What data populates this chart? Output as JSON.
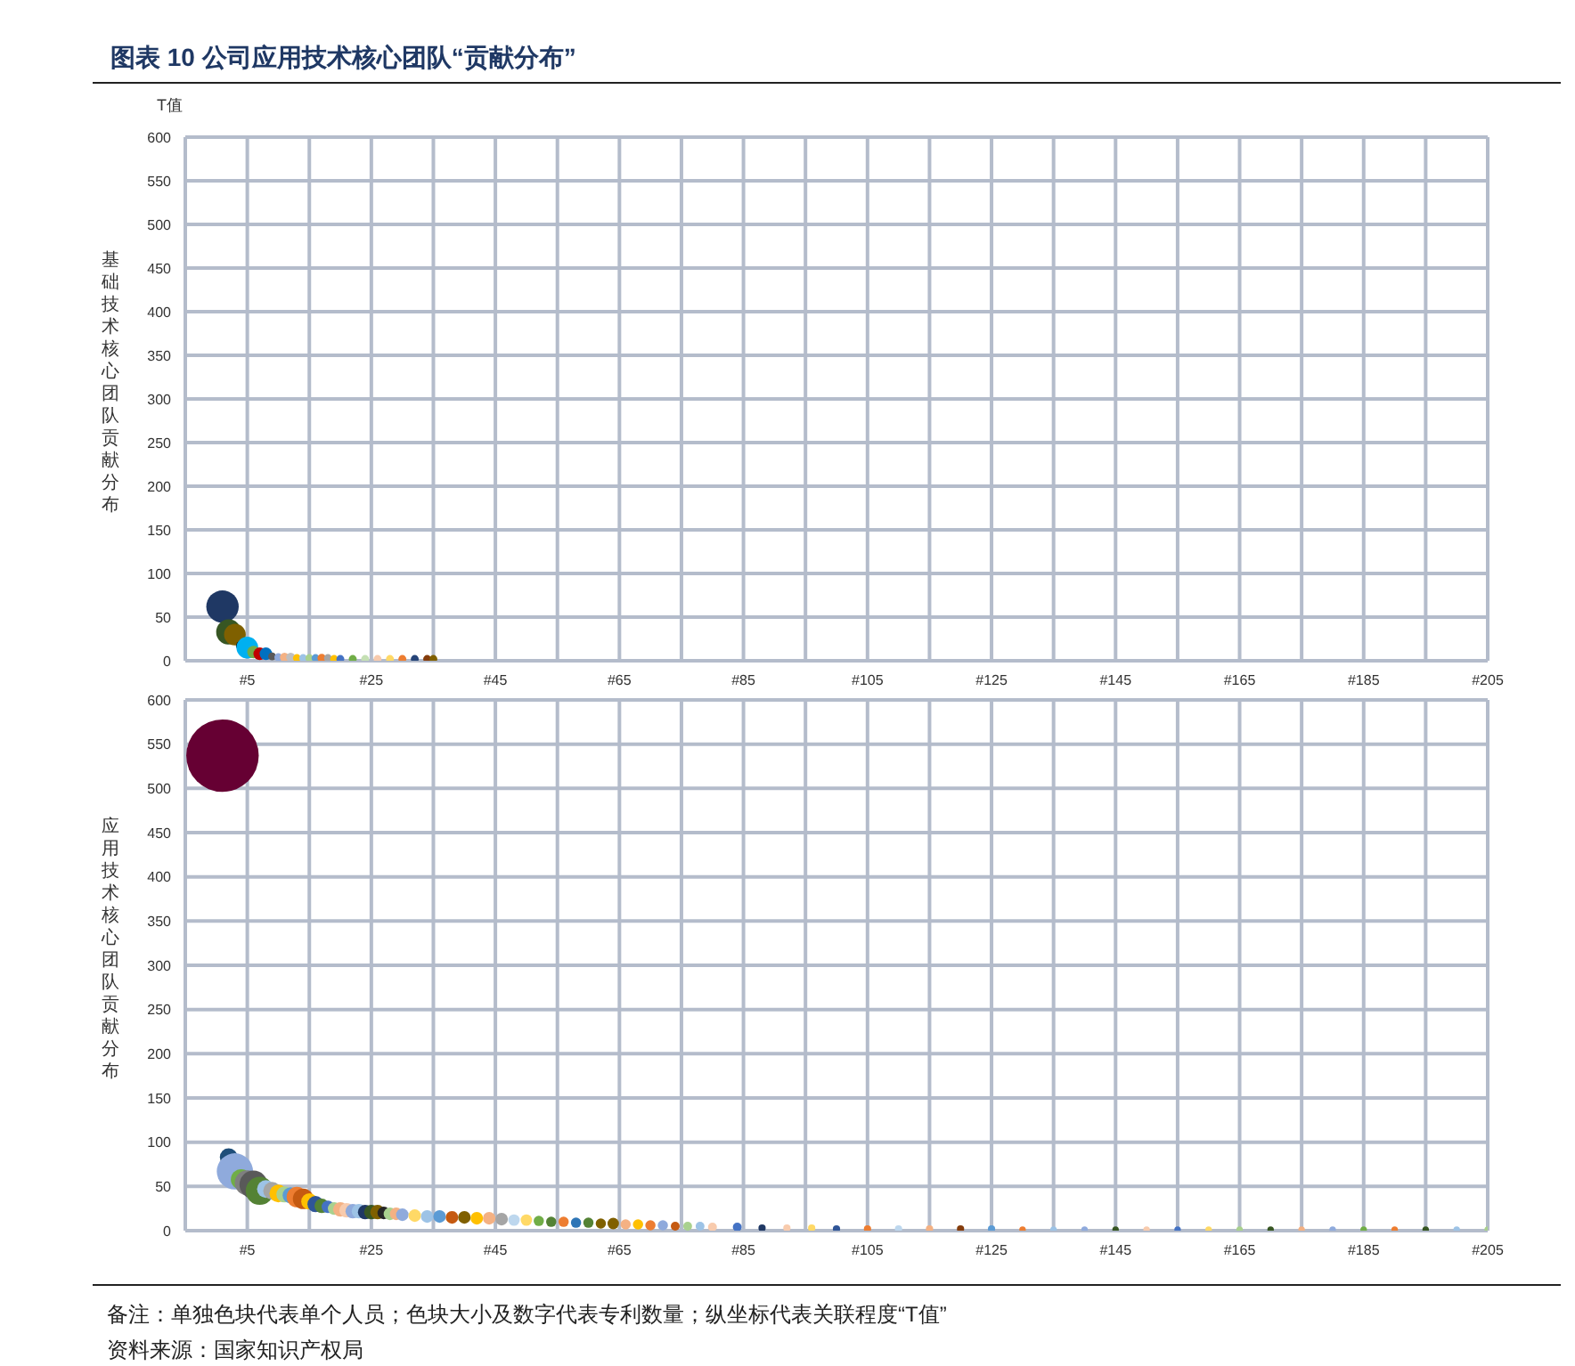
{
  "chart_data": [
    {
      "type": "bubble",
      "title": "图表 10 公司应用技术核心团队“贡献分布”",
      "ylabel": "基础技术核心团队贡献分布",
      "annotations": [
        "T值"
      ],
      "x": [
        1,
        2,
        3,
        4,
        5,
        6,
        7,
        8,
        9,
        10,
        11,
        12,
        13,
        14,
        15,
        16,
        17,
        18,
        19,
        20,
        22,
        24,
        26,
        28,
        30,
        32,
        34,
        35
      ],
      "values": [
        62,
        33,
        30,
        17,
        15,
        10,
        8,
        8,
        5,
        4,
        4,
        4,
        3,
        3,
        3,
        3,
        3,
        3,
        2,
        2,
        2,
        2,
        2,
        2,
        2,
        2,
        2,
        2
      ],
      "sizes": [
        1,
        0.6,
        0.45,
        0.1,
        0.45,
        0.15,
        0.15,
        0.15,
        0.06,
        0.06,
        0.08,
        0.08,
        0.06,
        0.06,
        0.06,
        0.06,
        0.07,
        0.06,
        0.06,
        0.06,
        0.06,
        0.06,
        0.06,
        0.06,
        0.06,
        0.06,
        0.06,
        0.06
      ],
      "colors": [
        "#1f3864",
        "#375623",
        "#7f6000",
        "#1a1a1a",
        "#00b0f0",
        "#70ad47",
        "#c00000",
        "#0070c0",
        "#595959",
        "#8faadc",
        "#f4b183",
        "#bfbfbf",
        "#ffc000",
        "#9dc3e6",
        "#a9d18e",
        "#5b9bd5",
        "#ed7d31",
        "#a5a5a5",
        "#ffc000",
        "#4472c4",
        "#70ad47",
        "#c5e0b4",
        "#f8cbad",
        "#ffd966",
        "#ed7d31",
        "#264478",
        "#843c0c",
        "#806000"
      ],
      "xlim": [
        -5,
        205
      ],
      "xticks": [
        {
          "value": -5,
          "label": null
        },
        {
          "value": 5,
          "label": "#5"
        },
        {
          "value": 15,
          "label": null
        },
        {
          "value": 25,
          "label": "#25"
        },
        {
          "value": 35,
          "label": null
        },
        {
          "value": 45,
          "label": "#45"
        },
        {
          "value": 55,
          "label": null
        },
        {
          "value": 65,
          "label": "#65"
        },
        {
          "value": 75,
          "label": null
        },
        {
          "value": 85,
          "label": "#85"
        },
        {
          "value": 95,
          "label": null
        },
        {
          "value": 105,
          "label": "#105"
        },
        {
          "value": 115,
          "label": null
        },
        {
          "value": 125,
          "label": "#125"
        },
        {
          "value": 135,
          "label": null
        },
        {
          "value": 145,
          "label": "#145"
        },
        {
          "value": 155,
          "label": null
        },
        {
          "value": 165,
          "label": "#165"
        },
        {
          "value": 175,
          "label": null
        },
        {
          "value": 185,
          "label": "#185"
        },
        {
          "value": 195,
          "label": null
        },
        {
          "value": 205,
          "label": "#205"
        }
      ],
      "ylim": [
        0,
        600
      ],
      "yticks": [
        0,
        50,
        100,
        150,
        200,
        250,
        300,
        350,
        400,
        450,
        500,
        550,
        600
      ],
      "grid": true
    },
    {
      "type": "bubble",
      "ylabel": "应用技术核心团队贡献分布",
      "annotations": [
        "备注：单独色块代表单个人员；色块大小及数字代表专利数量；纵坐标代表关联程度“T值”",
        "资料来源：国家知识产权局"
      ],
      "x": [
        1,
        2,
        3,
        4,
        5,
        6,
        7,
        8,
        9,
        10,
        11,
        12,
        13,
        14,
        15,
        16,
        17,
        18,
        19,
        20,
        21,
        22,
        23,
        24,
        25,
        26,
        27,
        28,
        29,
        30,
        32,
        34,
        36,
        38,
        40,
        42,
        44,
        46,
        48,
        50,
        52,
        54,
        56,
        58,
        60,
        62,
        64,
        66,
        68,
        70,
        72,
        74,
        76,
        78,
        80,
        84,
        88,
        92,
        96,
        100,
        105,
        110,
        115,
        120,
        125,
        130,
        135,
        140,
        145,
        150,
        155,
        160,
        165,
        170,
        175,
        180,
        185,
        190,
        195,
        200,
        205
      ],
      "values": [
        537,
        83,
        67,
        58,
        54,
        52,
        45,
        47,
        45,
        42,
        41,
        40,
        38,
        36,
        33,
        30,
        28,
        27,
        25,
        24,
        23,
        22,
        22,
        21,
        21,
        21,
        20,
        19,
        19,
        18,
        17,
        16,
        16,
        15,
        15,
        14,
        14,
        13,
        12,
        12,
        11,
        10,
        10,
        9,
        9,
        8,
        8,
        7,
        7,
        6,
        6,
        5,
        5,
        5,
        4,
        4,
        3,
        3,
        3,
        2,
        2,
        2,
        2,
        2,
        2,
        1,
        1,
        1,
        1,
        1,
        1,
        1,
        1,
        1,
        1,
        1,
        1,
        1,
        1,
        1,
        1
      ],
      "sizes": [
        1,
        0.06,
        0.25,
        0.08,
        0.12,
        0.15,
        0.15,
        0.06,
        0.06,
        0.06,
        0.05,
        0.05,
        0.08,
        0.08,
        0.05,
        0.05,
        0.04,
        0.03,
        0.03,
        0.04,
        0.04,
        0.04,
        0.04,
        0.04,
        0.04,
        0.04,
        0.03,
        0.03,
        0.03,
        0.03,
        0.03,
        0.03,
        0.03,
        0.03,
        0.03,
        0.03,
        0.03,
        0.03,
        0.025,
        0.025,
        0.02,
        0.02,
        0.02,
        0.02,
        0.02,
        0.02,
        0.025,
        0.02,
        0.02,
        0.02,
        0.02,
        0.015,
        0.015,
        0.015,
        0.015,
        0.015,
        0.01,
        0.01,
        0.01,
        0.01,
        0.01,
        0.01,
        0.01,
        0.01,
        0.01,
        0.008,
        0.008,
        0.008,
        0.008,
        0.008,
        0.008,
        0.008,
        0.008,
        0.008,
        0.008,
        0.008,
        0.008,
        0.008,
        0.008,
        0.008,
        0.008
      ],
      "colors": [
        "#660033",
        "#1f4e79",
        "#8faadc",
        "#70ad47",
        "#7f7f7f",
        "#595959",
        "#548235",
        "#9dc3e6",
        "#a5a5a5",
        "#ffc000",
        "#a9d18e",
        "#5b9bd5",
        "#ed7d31",
        "#c55a11",
        "#ffc000",
        "#2f5597",
        "#548235",
        "#4472c4",
        "#a9d18e",
        "#f4b183",
        "#f8cbad",
        "#8faadc",
        "#9dc3e6",
        "#1f3864",
        "#385723",
        "#7f6000",
        "#262626",
        "#a9d18e",
        "#f4b183",
        "#8faadc",
        "#ffd966",
        "#9dc3e6",
        "#5b9bd5",
        "#c55a11",
        "#806000",
        "#ffc000",
        "#f4b183",
        "#a5a5a5",
        "#bdd7ee",
        "#ffd966",
        "#70ad47",
        "#548235",
        "#ed7d31",
        "#2e75b6",
        "#548235",
        "#7f6000",
        "#806000",
        "#f4b183",
        "#ffc000",
        "#ed7d31",
        "#8faadc",
        "#c55a11",
        "#a9d18e",
        "#9dc3e6",
        "#f8cbad",
        "#4472c4",
        "#1f3864",
        "#f8cbad",
        "#ffd966",
        "#2f5597",
        "#ed7d31",
        "#bdd7ee",
        "#f4b183",
        "#843c0c",
        "#5b9bd5",
        "#ed7d31",
        "#9dc3e6",
        "#8faadc",
        "#375623",
        "#f8cbad",
        "#4472c4",
        "#ffd966",
        "#a9d18e",
        "#375623",
        "#f4b183",
        "#8faadc",
        "#70ad47",
        "#ed7d31",
        "#375623",
        "#9dc3e6",
        "#a9d18e"
      ],
      "xlim": [
        -5,
        205
      ],
      "xticks": [
        {
          "value": -5,
          "label": null
        },
        {
          "value": 5,
          "label": "#5"
        },
        {
          "value": 15,
          "label": null
        },
        {
          "value": 25,
          "label": "#25"
        },
        {
          "value": 35,
          "label": null
        },
        {
          "value": 45,
          "label": "#45"
        },
        {
          "value": 55,
          "label": null
        },
        {
          "value": 65,
          "label": "#65"
        },
        {
          "value": 75,
          "label": null
        },
        {
          "value": 85,
          "label": "#85"
        },
        {
          "value": 95,
          "label": null
        },
        {
          "value": 105,
          "label": "#105"
        },
        {
          "value": 115,
          "label": null
        },
        {
          "value": 125,
          "label": "#125"
        },
        {
          "value": 135,
          "label": null
        },
        {
          "value": 145,
          "label": "#145"
        },
        {
          "value": 155,
          "label": null
        },
        {
          "value": 165,
          "label": "#165"
        },
        {
          "value": 175,
          "label": null
        },
        {
          "value": 185,
          "label": "#185"
        },
        {
          "value": 195,
          "label": null
        },
        {
          "value": 205,
          "label": "#205"
        }
      ],
      "ylim": [
        0,
        600
      ],
      "yticks": [
        0,
        50,
        100,
        150,
        200,
        250,
        300,
        350,
        400,
        450,
        500,
        550,
        600
      ],
      "grid": true
    }
  ]
}
